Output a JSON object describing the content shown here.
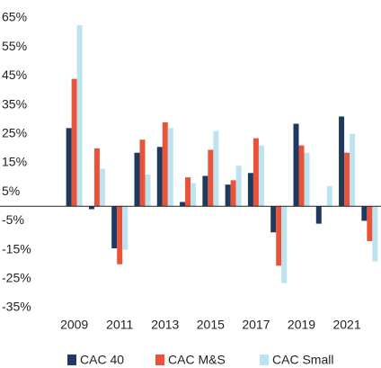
{
  "chart_data": {
    "type": "bar",
    "categories": [
      "2009",
      null,
      "2011",
      null,
      "2013",
      null,
      "2015",
      null,
      "2017",
      null,
      "2019",
      null,
      "2021",
      null
    ],
    "series": [
      {
        "name": "CAC 40",
        "color": "#1f3a5f",
        "values": [
          27,
          -1,
          -14.5,
          18.5,
          20.5,
          1.5,
          10.5,
          7.5,
          11.5,
          -9,
          28.5,
          -6,
          31,
          -5
        ]
      },
      {
        "name": "CAC M&S",
        "color": "#e8533a",
        "values": [
          44,
          20,
          -20,
          23,
          29,
          10,
          19.5,
          9,
          23.5,
          -20.5,
          21,
          0,
          18.5,
          -12
        ]
      },
      {
        "name": "CAC Small",
        "color": "#bde3ee",
        "values": [
          62.5,
          13,
          -15,
          11,
          27,
          8,
          26,
          14,
          21,
          -26.5,
          18.5,
          7,
          25,
          -19
        ]
      }
    ],
    "ylim": [
      -35,
      65
    ],
    "yticks": [
      {
        "value": -35,
        "label": "-35%"
      },
      {
        "value": -25,
        "label": "-25%"
      },
      {
        "value": -15,
        "label": "-15%"
      },
      {
        "value": -5,
        "label": "-5%"
      },
      {
        "value": 5,
        "label": "5%"
      },
      {
        "value": 15,
        "label": "15%"
      },
      {
        "value": 25,
        "label": "25%"
      },
      {
        "value": 35,
        "label": "35%"
      },
      {
        "value": 45,
        "label": "45%"
      },
      {
        "value": 55,
        "label": "55%"
      },
      {
        "value": 65,
        "label": "65%"
      }
    ],
    "legend": "bottom"
  }
}
